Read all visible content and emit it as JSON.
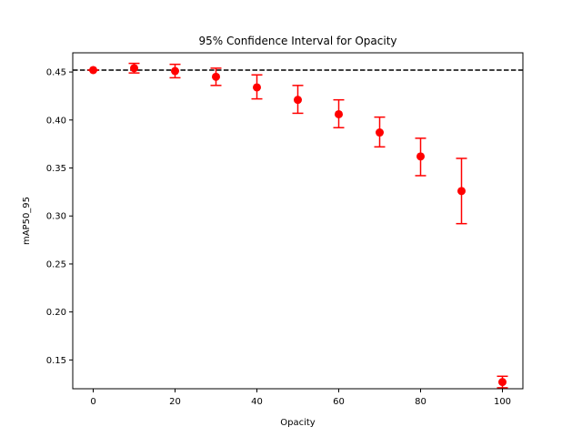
{
  "chart_data": {
    "type": "scatter",
    "title": "95% Confidence Interval for Opacity",
    "xlabel": "Opacity",
    "ylabel": "mAP50_95",
    "xlim": [
      -5,
      105
    ],
    "ylim": [
      0.12,
      0.47
    ],
    "xticks": [
      0,
      20,
      40,
      60,
      80,
      100
    ],
    "yticks": [
      0.15,
      0.2,
      0.25,
      0.3,
      0.35,
      0.4,
      0.45
    ],
    "grid": false,
    "legend": "none",
    "reference_line": {
      "y": 0.452,
      "style": "dashed",
      "color": "#000000"
    },
    "series": [
      {
        "color": "#ff0000",
        "marker": "circle",
        "points": [
          {
            "x": 0,
            "y": 0.452,
            "lo": 0.452,
            "hi": 0.452
          },
          {
            "x": 10,
            "y": 0.454,
            "lo": 0.449,
            "hi": 0.459
          },
          {
            "x": 20,
            "y": 0.451,
            "lo": 0.444,
            "hi": 0.458
          },
          {
            "x": 30,
            "y": 0.445,
            "lo": 0.436,
            "hi": 0.454
          },
          {
            "x": 40,
            "y": 0.434,
            "lo": 0.422,
            "hi": 0.447
          },
          {
            "x": 50,
            "y": 0.421,
            "lo": 0.407,
            "hi": 0.436
          },
          {
            "x": 60,
            "y": 0.406,
            "lo": 0.392,
            "hi": 0.421
          },
          {
            "x": 70,
            "y": 0.387,
            "lo": 0.372,
            "hi": 0.403
          },
          {
            "x": 80,
            "y": 0.362,
            "lo": 0.342,
            "hi": 0.381
          },
          {
            "x": 90,
            "y": 0.326,
            "lo": 0.292,
            "hi": 0.36
          },
          {
            "x": 100,
            "y": 0.127,
            "lo": 0.121,
            "hi": 0.133
          }
        ]
      }
    ]
  }
}
